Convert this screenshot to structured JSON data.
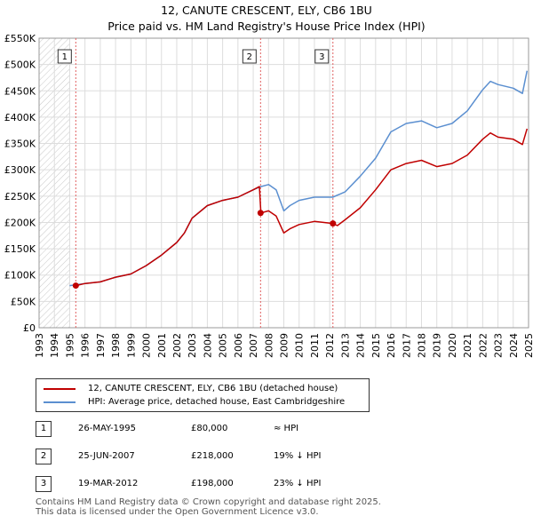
{
  "header": {
    "title_line1": "12, CANUTE CRESCENT, ELY, CB6 1BU",
    "title_line2": "Price paid vs. HM Land Registry's House Price Index (HPI)"
  },
  "chart_data": {
    "type": "line",
    "title": "12, CANUTE CRESCENT, ELY, CB6 1BU — Price paid vs. HM Land Registry's House Price Index (HPI)",
    "xlabel": "",
    "ylabel": "",
    "xlim": [
      1993,
      2025
    ],
    "ylim": [
      0,
      550000
    ],
    "x_ticks": [
      "1993",
      "1994",
      "1995",
      "1996",
      "1997",
      "1998",
      "1999",
      "2000",
      "2001",
      "2002",
      "2003",
      "2004",
      "2005",
      "2006",
      "2007",
      "2008",
      "2009",
      "2010",
      "2011",
      "2012",
      "2013",
      "2014",
      "2015",
      "2016",
      "2017",
      "2018",
      "2019",
      "2020",
      "2021",
      "2022",
      "2023",
      "2024",
      "2025"
    ],
    "y_ticks": [
      "£0",
      "£50K",
      "£100K",
      "£150K",
      "£200K",
      "£250K",
      "£300K",
      "£350K",
      "£400K",
      "£450K",
      "£500K",
      "£550K"
    ],
    "hatched_until": 1995.0,
    "series": [
      {
        "name": "12, CANUTE CRESCENT, ELY, CB6 1BU (detached house)",
        "color": "#c00000",
        "x": [
          1995.4,
          1996,
          1997,
          1998,
          1999,
          2000,
          2001,
          2002,
          2002.5,
          2003,
          2004,
          2005,
          2006,
          2007,
          2007.4,
          2007.5,
          2008,
          2008.5,
          2009,
          2009.4,
          2010,
          2011,
          2012.2,
          2012.5,
          2013,
          2014,
          2015,
          2016,
          2017,
          2018,
          2019,
          2020,
          2021,
          2022,
          2022.5,
          2023,
          2024,
          2024.6,
          2024.9
        ],
        "values": [
          80000,
          84000,
          87000,
          96000,
          102000,
          118000,
          138000,
          162000,
          180000,
          208000,
          232000,
          242000,
          248000,
          262000,
          268000,
          218000,
          222000,
          212000,
          180000,
          188000,
          196000,
          202000,
          198000,
          194000,
          205000,
          228000,
          262000,
          300000,
          312000,
          318000,
          306000,
          312000,
          328000,
          358000,
          370000,
          362000,
          358000,
          348000,
          378000
        ]
      },
      {
        "name": "HPI: Average price, detached house, East Cambridgeshire",
        "color": "#5b8fd0",
        "x": [
          1995.0,
          1996,
          1997,
          1998,
          1999,
          2000,
          2001,
          2002,
          2002.5,
          2003,
          2004,
          2005,
          2006,
          2007,
          2007.5,
          2008,
          2008.5,
          2009,
          2009.4,
          2010,
          2011,
          2012.2,
          2013,
          2014,
          2015,
          2016,
          2017,
          2018,
          2019,
          2020,
          2021,
          2022,
          2022.5,
          2023,
          2024,
          2024.6,
          2024.9
        ],
        "values": [
          80000,
          84000,
          87000,
          96000,
          102000,
          118000,
          138000,
          162000,
          180000,
          208000,
          232000,
          242000,
          248000,
          262000,
          268000,
          272000,
          262000,
          222000,
          232000,
          242000,
          248000,
          248000,
          258000,
          288000,
          322000,
          372000,
          388000,
          393000,
          380000,
          388000,
          412000,
          452000,
          468000,
          462000,
          455000,
          445000,
          488000
        ]
      }
    ],
    "sales": [
      {
        "label": "1",
        "date": "26-MAY-1995",
        "x": 1995.4,
        "price": 80000,
        "hpi": "≈ HPI"
      },
      {
        "label": "2",
        "date": "25-JUN-2007",
        "x": 2007.48,
        "price": 218000,
        "hpi": "19% ↓ HPI"
      },
      {
        "label": "3",
        "date": "19-MAR-2012",
        "x": 2012.21,
        "price": 198000,
        "hpi": "23% ↓ HPI"
      }
    ]
  },
  "legend": {
    "items": [
      {
        "label": "12, CANUTE CRESCENT, ELY, CB6 1BU (detached house)",
        "color": "#c00000"
      },
      {
        "label": "HPI: Average price, detached house, East Cambridgeshire",
        "color": "#5b8fd0"
      }
    ]
  },
  "table": {
    "rows": [
      {
        "num": "1",
        "date": "26-MAY-1995",
        "price": "£80,000",
        "hpi": "≈ HPI"
      },
      {
        "num": "2",
        "date": "25-JUN-2007",
        "price": "£218,000",
        "hpi": "19% ↓ HPI"
      },
      {
        "num": "3",
        "date": "19-MAR-2012",
        "price": "£198,000",
        "hpi": "23% ↓ HPI"
      }
    ]
  },
  "footer": {
    "line1": "Contains HM Land Registry data © Crown copyright and database right 2025.",
    "line2": "This data is licensed under the Open Government Licence v3.0."
  }
}
